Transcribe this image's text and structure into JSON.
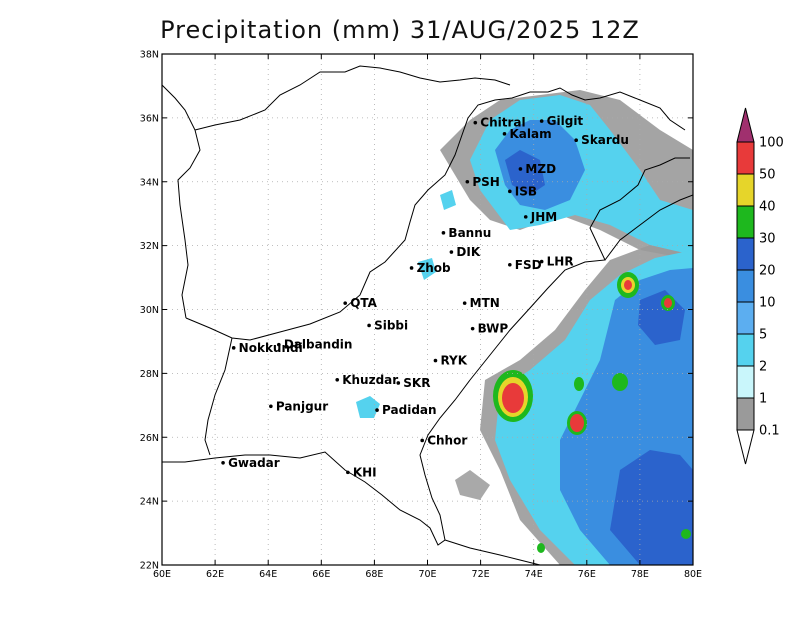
{
  "title": "Precipitation (mm) 31/AUG/2025 12Z",
  "axes": {
    "lon_ticks": [
      "60E",
      "62E",
      "64E",
      "66E",
      "68E",
      "70E",
      "72E",
      "74E",
      "76E",
      "78E",
      "80E"
    ],
    "lat_ticks": [
      "22N",
      "24N",
      "26N",
      "28N",
      "30N",
      "32N",
      "34N",
      "36N",
      "38N"
    ],
    "lon_range": [
      60,
      80
    ],
    "lat_range": [
      22,
      38
    ],
    "grid": true
  },
  "colorbar": {
    "labels": [
      "100",
      "50",
      "40",
      "30",
      "20",
      "10",
      "5",
      "2",
      "1",
      "0.1"
    ],
    "colors": [
      "#e0447e",
      "#e83a3a",
      "#e6d52a",
      "#1eb81e",
      "#2b63cc",
      "#3a8ee0",
      "#5caef0",
      "#55d2ee",
      "#c9f6fb",
      "#9a9a9a"
    ],
    "top_arrow_color": "#a0306e"
  },
  "cities": [
    {
      "name": "Chitral",
      "lon": 71.8,
      "lat": 35.85
    },
    {
      "name": "Gilgit",
      "lon": 74.3,
      "lat": 35.9
    },
    {
      "name": "Kalam",
      "lon": 72.9,
      "lat": 35.5
    },
    {
      "name": "Skardu",
      "lon": 75.6,
      "lat": 35.3
    },
    {
      "name": "MZD",
      "lon": 73.5,
      "lat": 34.4
    },
    {
      "name": "PSH",
      "lon": 71.5,
      "lat": 34.0
    },
    {
      "name": "ISB",
      "lon": 73.1,
      "lat": 33.7
    },
    {
      "name": "JHM",
      "lon": 73.7,
      "lat": 32.9
    },
    {
      "name": "Bannu",
      "lon": 70.6,
      "lat": 32.4
    },
    {
      "name": "DIK",
      "lon": 70.9,
      "lat": 31.8
    },
    {
      "name": "FSD",
      "lon": 73.1,
      "lat": 31.4
    },
    {
      "name": "LHR",
      "lon": 74.3,
      "lat": 31.5
    },
    {
      "name": "Zhob",
      "lon": 69.4,
      "lat": 31.3
    },
    {
      "name": "QTA",
      "lon": 66.9,
      "lat": 30.2
    },
    {
      "name": "MTN",
      "lon": 71.4,
      "lat": 30.2
    },
    {
      "name": "Sibbi",
      "lon": 67.8,
      "lat": 29.5
    },
    {
      "name": "BWP",
      "lon": 71.7,
      "lat": 29.4
    },
    {
      "name": "Dalbandin",
      "lon": 64.4,
      "lat": 28.9
    },
    {
      "name": "Nokkundi",
      "lon": 62.7,
      "lat": 28.8
    },
    {
      "name": "RYK",
      "lon": 70.3,
      "lat": 28.4
    },
    {
      "name": "Khuzdar",
      "lon": 66.6,
      "lat": 27.8
    },
    {
      "name": "SKR",
      "lon": 68.9,
      "lat": 27.7
    },
    {
      "name": "Panjgur",
      "lon": 64.1,
      "lat": 26.97
    },
    {
      "name": "Padidan",
      "lon": 68.1,
      "lat": 26.85
    },
    {
      "name": "Chhor",
      "lon": 69.8,
      "lat": 25.9
    },
    {
      "name": "KHI",
      "lon": 67.0,
      "lat": 24.9
    },
    {
      "name": "Gwadar",
      "lon": 62.3,
      "lat": 25.2
    }
  ]
}
